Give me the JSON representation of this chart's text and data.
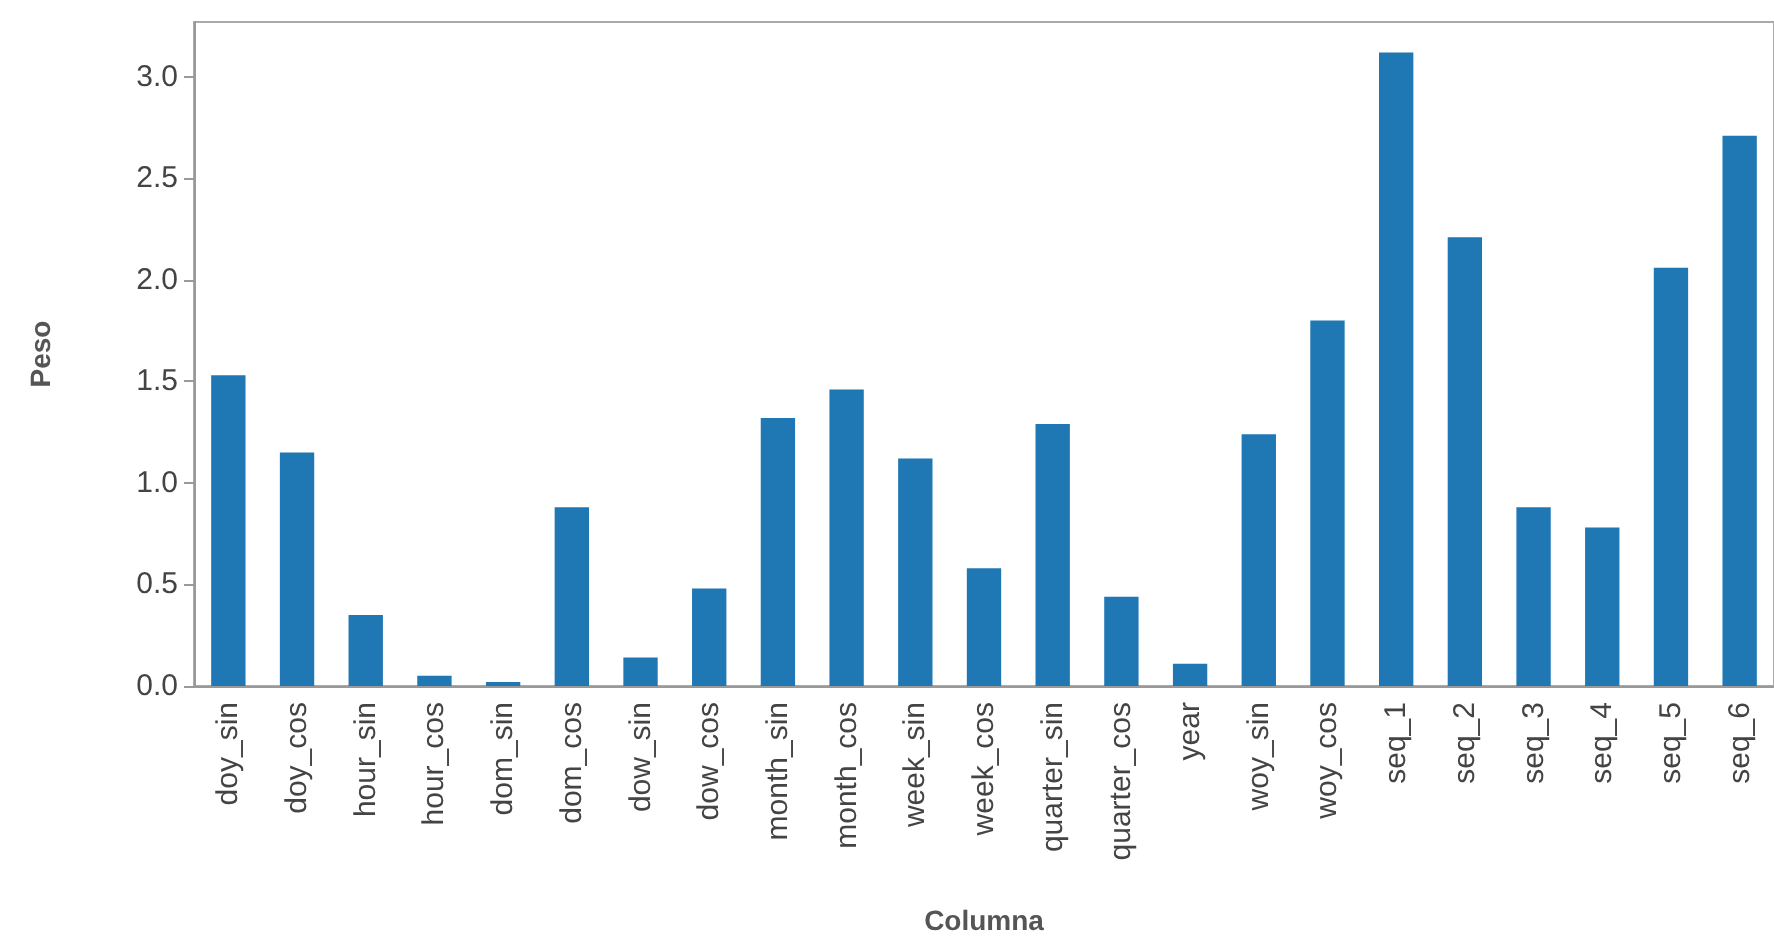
{
  "chart_data": {
    "type": "bar",
    "xlabel": "Columna",
    "ylabel": "Peso",
    "categories": [
      "doy_sin",
      "doy_cos",
      "hour_sin",
      "hour_cos",
      "dom_sin",
      "dom_cos",
      "dow_sin",
      "dow_cos",
      "month_sin",
      "month_cos",
      "week_sin",
      "week_cos",
      "quarter_sin",
      "quarter_cos",
      "year",
      "woy_sin",
      "woy_cos",
      "seq_1",
      "seq_2",
      "seq_3",
      "seq_4",
      "seq_5",
      "seq_6"
    ],
    "values": [
      1.53,
      1.15,
      0.35,
      0.05,
      0.02,
      0.88,
      0.14,
      0.48,
      1.32,
      1.46,
      1.12,
      0.58,
      1.29,
      0.44,
      0.11,
      1.24,
      1.8,
      3.12,
      2.21,
      0.88,
      0.78,
      2.06,
      2.71
    ],
    "color": "#1f77b4",
    "ylim": [
      0,
      3.27
    ],
    "yticks": [
      {
        "value": 0,
        "label": "0.0"
      },
      0.5,
      {
        "value": 1,
        "label": "1.0"
      },
      1.5,
      {
        "value": 2,
        "label": "2.0"
      },
      2.5,
      {
        "value": 3,
        "label": "3.0"
      }
    ],
    "grid": false
  }
}
